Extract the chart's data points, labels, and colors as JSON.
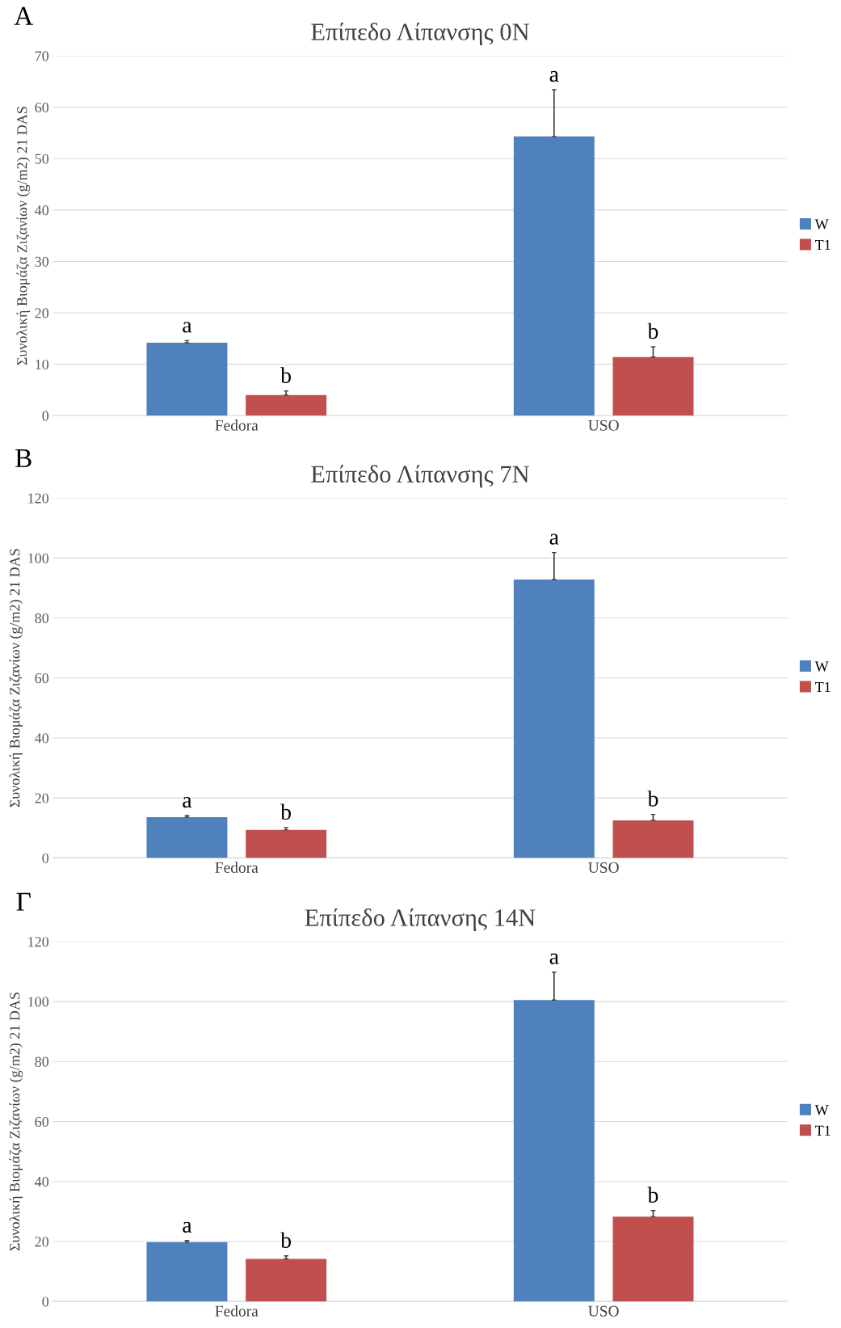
{
  "chart_data": [
    {
      "type": "bar",
      "title": "Επίπεδο Λίπανσης 0N",
      "ylabel": "Συνολική Βιομάζα Ζιζανίων (g/m2) 21 DAS",
      "annotations": [
        "A"
      ],
      "categories": [
        "Fedora",
        "USO"
      ],
      "series": [
        {
          "name": "W",
          "color": "#4f81bd",
          "values": [
            14.2,
            54.3
          ],
          "errors": [
            0.4,
            9.1
          ],
          "value_labels": [
            "a",
            "a"
          ]
        },
        {
          "name": "T1",
          "color": "#c0504d",
          "values": [
            4.0,
            11.4
          ],
          "errors": [
            0.8,
            2.0
          ],
          "value_labels": [
            "b",
            "b"
          ]
        }
      ],
      "ylim": [
        0,
        70
      ],
      "yticks": [
        0,
        10,
        20,
        30,
        40,
        50,
        60,
        70
      ],
      "grid": "y",
      "legend": "right"
    },
    {
      "type": "bar",
      "title": "Επίπεδο Λίπανσης 7N",
      "ylabel": "Συνολική Βιομάζα Ζιζανίων (g/m2) 21 DAS",
      "annotations": [
        "B"
      ],
      "categories": [
        "Fedora",
        "USO"
      ],
      "series": [
        {
          "name": "W",
          "color": "#4f81bd",
          "values": [
            13.6,
            92.8
          ],
          "errors": [
            0.5,
            9.0
          ],
          "value_labels": [
            "a",
            "a"
          ]
        },
        {
          "name": "T1",
          "color": "#c0504d",
          "values": [
            9.3,
            12.5
          ],
          "errors": [
            0.8,
            2.0
          ],
          "value_labels": [
            "b",
            "b"
          ]
        }
      ],
      "ylim": [
        0,
        120
      ],
      "yticks": [
        0,
        20,
        40,
        60,
        80,
        100,
        120
      ],
      "grid": "y",
      "legend": "right"
    },
    {
      "type": "bar",
      "title": "Επίπεδο Λίπανσης 14N",
      "ylabel": "Συνολική Βιομάζα Ζιζανίων (g/m2) 21 DAS",
      "annotations": [
        "Γ"
      ],
      "categories": [
        "Fedora",
        "USO"
      ],
      "series": [
        {
          "name": "W",
          "color": "#4f81bd",
          "values": [
            19.8,
            100.5
          ],
          "errors": [
            0.5,
            9.3
          ],
          "value_labels": [
            "a",
            "a"
          ]
        },
        {
          "name": "T1",
          "color": "#c0504d",
          "values": [
            14.2,
            28.3
          ],
          "errors": [
            1.0,
            2.0
          ],
          "value_labels": [
            "b",
            "b"
          ]
        }
      ],
      "ylim": [
        0,
        120
      ],
      "yticks": [
        0,
        20,
        40,
        60,
        80,
        100,
        120
      ],
      "grid": "y",
      "legend": "right"
    }
  ]
}
